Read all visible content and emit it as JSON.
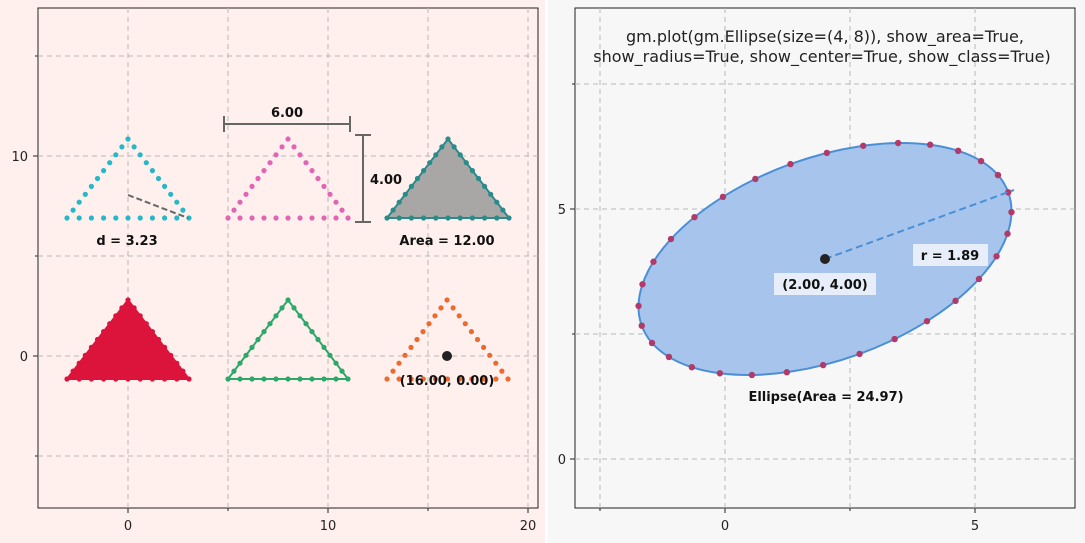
{
  "figure": {
    "left_panel": {
      "background": "#fff0ee",
      "x_ticks": [
        "0",
        "10",
        "20"
      ],
      "y_ticks": [
        "10",
        "0"
      ],
      "labels": {
        "distance": "d = 3.23",
        "width": "6.00",
        "height": "4.00",
        "area": "Area = 12.00",
        "center": "(16.00, 0.00)"
      },
      "colors": {
        "cyan": "#26b8c8",
        "pink": "#e264b4",
        "gray_fill": "#a9a6a6",
        "teal_edge": "#2b8a8a",
        "crimson": "#dc143c",
        "green": "#2ca86a",
        "orange": "#ee6a2c",
        "measure": "#666666"
      }
    },
    "right_panel": {
      "background": "#f7f7f7",
      "title_line1": "gm.plot(gm.Ellipse(size=(4, 8)), show_area=True,",
      "title_line2": "show_radius=True, show_center=True, show_class=True)",
      "x_ticks": [
        "0",
        "5"
      ],
      "y_ticks": [
        "5",
        "0"
      ],
      "labels": {
        "center": "(2.00, 4.00)",
        "radius": "r = 1.89",
        "area": "Ellipse(Area = 24.97)"
      },
      "colors": {
        "ellipse_fill": "#a7c4ec",
        "ellipse_edge": "#4a8fd6",
        "vertex": "#b03a6a"
      }
    }
  }
}
